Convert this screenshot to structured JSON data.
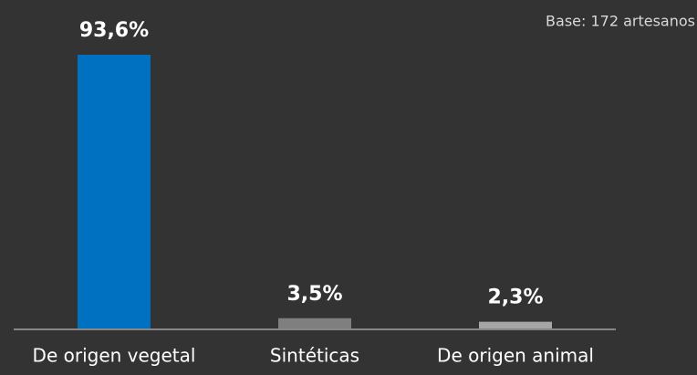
{
  "chart_data": {
    "type": "bar",
    "annotation": "Base: 172 artesanos",
    "categories": [
      "De origen vegetal",
      "Sintéticas",
      "De origen animal"
    ],
    "values": [
      93.6,
      3.5,
      2.3
    ],
    "value_labels": [
      "93,6%",
      "3,5%",
      "2,3%"
    ],
    "colors": [
      "#0070c0",
      "#7f7f7f",
      "#a6a6a6"
    ]
  }
}
